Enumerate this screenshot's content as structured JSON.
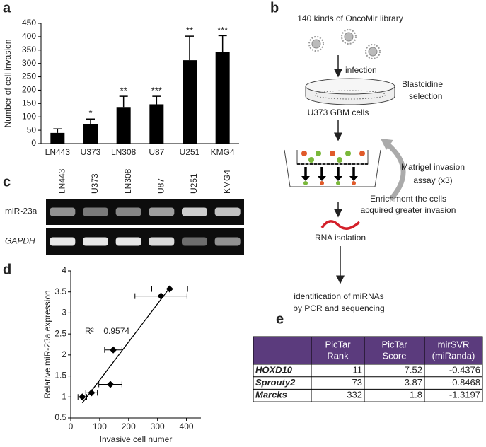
{
  "chart_data": [
    {
      "type": "bar",
      "y_label": "Number of cell invasion",
      "categories": [
        "LN443",
        "U373",
        "LN308",
        "U87",
        "U251",
        "KMG4"
      ],
      "values": [
        40,
        72,
        137,
        147,
        312,
        342
      ],
      "errors": [
        15,
        20,
        40,
        30,
        90,
        62
      ],
      "significance": [
        null,
        "*",
        "**",
        "***",
        "**",
        "***"
      ],
      "color": "#000000",
      "ylim": [
        0,
        450
      ],
      "yticks": [
        0,
        50,
        100,
        150,
        200,
        250,
        300,
        350,
        400,
        450
      ]
    },
    {
      "type": "scatter",
      "x_label": "Invasive cell numer",
      "y_label": "Relative miR-23a expression",
      "annotation": "R² = 0.9574",
      "x": [
        40,
        72,
        137,
        147,
        312,
        342
      ],
      "x_errors": [
        15,
        20,
        40,
        30,
        90,
        62
      ],
      "values": [
        1.0,
        1.1,
        1.3,
        2.12,
        3.4,
        3.57
      ],
      "color": "#000000",
      "trendline": true,
      "xlim": [
        0,
        450
      ],
      "xticks": [
        0,
        100,
        200,
        300,
        400
      ],
      "ylim": [
        0.5,
        4
      ],
      "yticks": [
        0.5,
        1,
        1.5,
        2,
        2.5,
        3,
        3.5,
        4
      ]
    }
  ],
  "panel_labels": [
    "a",
    "b",
    "c",
    "d",
    "e"
  ],
  "diagram": {
    "library": "140 kinds of OncoMir library",
    "infection": "infection",
    "selection": [
      "Blastcidine",
      "selection"
    ],
    "cells": "U373 GBM cells",
    "assay": [
      "Matrigel invasion",
      "assay (x3)"
    ],
    "enrichment": [
      "Enrichment the cells",
      "acquired greater invasion"
    ],
    "rna": "RNA isolation",
    "identification": [
      "identification of miRNAs",
      "by PCR and sequencing"
    ]
  },
  "gel": {
    "lanes": [
      "LN443",
      "U373",
      "LN308",
      "U87",
      "U251",
      "KMG4"
    ],
    "rows": [
      "miR-23a",
      "GAPDH"
    ]
  },
  "table": {
    "header": [
      [
        "PicTar",
        "Rank"
      ],
      [
        "PicTar",
        "Score"
      ],
      [
        "mirSVR",
        "(miRanda)"
      ]
    ],
    "rows": [
      [
        "HOXD10",
        11,
        7.52,
        -0.4376
      ],
      [
        "Sprouty2",
        73,
        3.87,
        -0.8468
      ],
      [
        "Marcks",
        332,
        1.8,
        -1.3197
      ]
    ]
  }
}
